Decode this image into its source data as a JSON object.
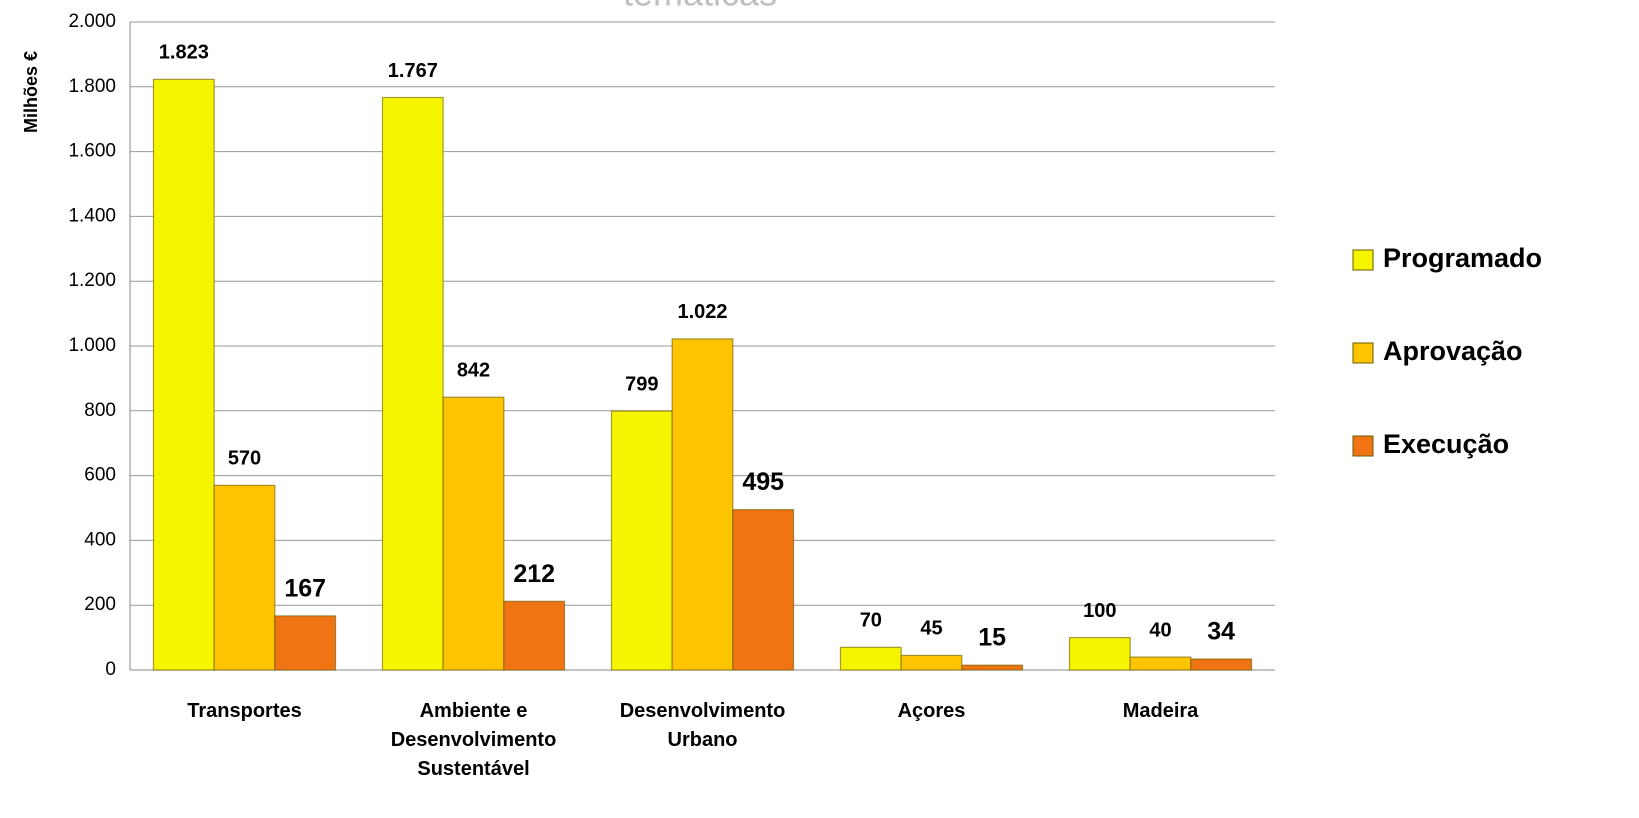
{
  "chart_data": {
    "type": "bar",
    "title": "temáticas",
    "y_label": "Milhões €",
    "categories": [
      "Transportes",
      "Ambiente e Desenvolvimento Sustentável",
      "Desenvolvimento Urbano",
      "Açores",
      "Madeira"
    ],
    "series": [
      {
        "name": "Programado",
        "color": "#f5f500",
        "values": [
          1823,
          1767,
          799,
          70,
          100
        ],
        "value_labels": [
          "1.823",
          "1.767",
          "799",
          "70",
          "100"
        ]
      },
      {
        "name": "Aprovação",
        "color": "#ffc400",
        "values": [
          570,
          842,
          1022,
          45,
          40
        ],
        "value_labels": [
          "570",
          "842",
          "1.022",
          "45",
          "40"
        ]
      },
      {
        "name": "Execução",
        "color": "#f07414",
        "values": [
          167,
          212,
          495,
          15,
          34
        ],
        "value_labels": [
          "167",
          "212",
          "495",
          "15",
          "34"
        ]
      }
    ],
    "ylim": [
      0,
      2000
    ],
    "yticks": [
      0,
      200,
      400,
      600,
      800,
      {
        "value": 1000,
        "label": "1.000"
      },
      {
        "value": 1200,
        "label": "1.200"
      },
      {
        "value": 1400,
        "label": "1.400"
      },
      {
        "value": 1600,
        "label": "1.600"
      },
      {
        "value": 1800,
        "label": "1.800"
      },
      {
        "value": 2000,
        "label": "2.000"
      }
    ],
    "grid": true,
    "legend": "right"
  }
}
